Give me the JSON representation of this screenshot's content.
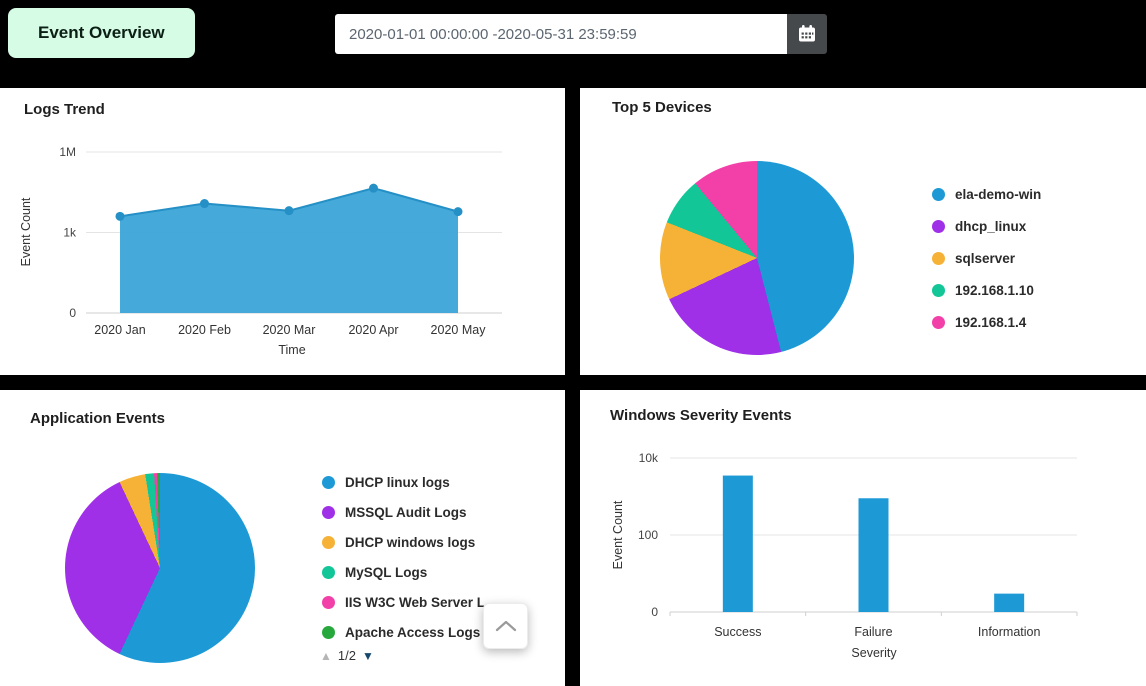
{
  "header": {
    "page_label": "Event Overview",
    "label_bg": "#d6fce6",
    "date_range_value": "2020-01-01 00:00:00 -2020-05-31 23:59:59"
  },
  "chart_data": [
    {
      "id": "logs_trend",
      "type": "area",
      "title": "Logs Trend",
      "x": [
        "2020 Jan",
        "2020 Feb",
        "2020 Mar",
        "2020 Apr",
        "2020 May"
      ],
      "values": [
        4000,
        12000,
        6500,
        45000,
        6000
      ],
      "xlabel": "Time",
      "ylabel": "Event Count",
      "yscale": "log",
      "yticks": [
        "0",
        "1k",
        "1M"
      ],
      "fill_color": "#3ba4d8",
      "line_color": "#2590c6"
    },
    {
      "id": "top_devices",
      "type": "pie",
      "title": "Top 5 Devices",
      "legend_position": "right",
      "slices": [
        {
          "label": "ela-demo-win",
          "value": 46,
          "color": "#1d9ad6"
        },
        {
          "label": "dhcp_linux",
          "value": 22,
          "color": "#a02fe8"
        },
        {
          "label": "sqlserver",
          "value": 13,
          "color": "#f6b237"
        },
        {
          "label": "192.168.1.10",
          "value": 8,
          "color": "#12c698"
        },
        {
          "label": "192.168.1.4",
          "value": 11,
          "color": "#f240a8"
        }
      ]
    },
    {
      "id": "application_events",
      "type": "pie",
      "title": "Application Events",
      "legend_position": "right",
      "legend_pager": {
        "up_icon": "▲",
        "page": "1/2",
        "down_icon": "▼"
      },
      "slices": [
        {
          "label": "DHCP linux logs",
          "value": 57,
          "color": "#1d9ad6"
        },
        {
          "label": "MSSQL Audit Logs",
          "value": 36,
          "color": "#a02fe8"
        },
        {
          "label": "DHCP windows logs",
          "value": 4.5,
          "color": "#f6b237"
        },
        {
          "label": "MySQL Logs",
          "value": 1.5,
          "color": "#12c698"
        },
        {
          "label": "IIS W3C Web Server L...",
          "value": 0.5,
          "color": "#f240a8"
        },
        {
          "label": "Apache Access Logs",
          "value": 0.5,
          "color": "#27a83c"
        }
      ]
    },
    {
      "id": "windows_severity",
      "type": "bar",
      "title": "Windows Severity Events",
      "categories": [
        "Success",
        "Failure",
        "Information"
      ],
      "values": [
        3500,
        900,
        3
      ],
      "xlabel": "Severity",
      "ylabel": "Event Count",
      "yscale": "log",
      "yticks": [
        "0",
        "100",
        "10k"
      ],
      "bar_color": "#1d9ad6"
    }
  ]
}
